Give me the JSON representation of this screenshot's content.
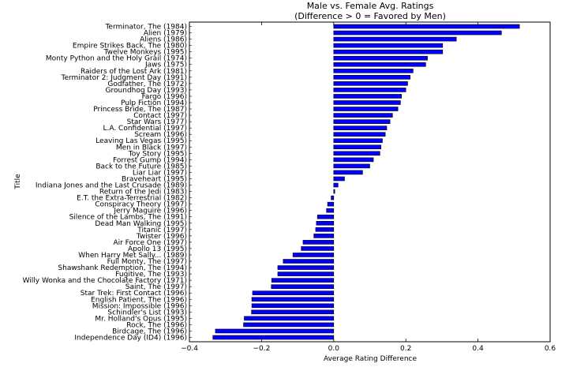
{
  "chart_data": {
    "type": "bar",
    "orientation": "horizontal",
    "title": "Male vs. Female Avg. Ratings",
    "subtitle": "(Difference > 0 = Favored by Men)",
    "xlabel": "Average Rating Difference",
    "ylabel": "Title",
    "xlim": [
      -0.4,
      0.6
    ],
    "xticks": [
      "−0.4",
      "−0.2",
      "0.0",
      "0.2",
      "0.4",
      "0.6"
    ],
    "grid": false,
    "bar_color": "#0000ff",
    "categories": [
      "Terminator, The (1984)",
      "Alien (1979)",
      "Aliens (1986)",
      "Empire Strikes Back, The (1980)",
      "Twelve Monkeys (1995)",
      "Monty Python and the Holy Grail (1974)",
      "Jaws (1975)",
      "Raiders of the Lost Ark (1981)",
      "Terminator 2: Judgment Day (1991)",
      "Godfather, The (1972)",
      "Groundhog Day (1993)",
      "Fargo (1996)",
      "Pulp Fiction (1994)",
      "Princess Bride, The (1987)",
      "Contact (1997)",
      "Star Wars (1977)",
      "L.A. Confidential (1997)",
      "Scream (1996)",
      "Leaving Las Vegas (1995)",
      "Men in Black (1997)",
      "Toy Story (1995)",
      "Forrest Gump (1994)",
      "Back to the Future (1985)",
      "Liar Liar (1997)",
      "Braveheart (1995)",
      "Indiana Jones and the Last Crusade (1989)",
      "Return of the Jedi (1983)",
      "E.T. the Extra-Terrestrial (1982)",
      "Conspiracy Theory (1997)",
      "Jerry Maguire (1996)",
      "Silence of the Lambs, The (1991)",
      "Dead Man Walking (1995)",
      "Titanic (1997)",
      "Twister (1996)",
      "Air Force One (1997)",
      "Apollo 13 (1995)",
      "When Harry Met Sally... (1989)",
      "Full Monty, The (1997)",
      "Shawshank Redemption, The (1994)",
      "Fugitive, The (1993)",
      "Willy Wonka and the Chocolate Factory (1971)",
      "Saint, The (1997)",
      "Star Trek: First Contact (1996)",
      "English Patient, The (1996)",
      "Mission: Impossible (1996)",
      "Schindler's List (1993)",
      "Mr. Holland's Opus (1995)",
      "Rock, The (1996)",
      "Birdcage, The (1996)",
      "Independence Day (ID4) (1996)"
    ],
    "values": [
      0.515,
      0.465,
      0.34,
      0.302,
      0.302,
      0.26,
      0.255,
      0.22,
      0.212,
      0.205,
      0.2,
      0.188,
      0.185,
      0.178,
      0.163,
      0.156,
      0.147,
      0.143,
      0.135,
      0.131,
      0.128,
      0.11,
      0.1,
      0.08,
      0.03,
      0.012,
      0.003,
      -0.007,
      -0.017,
      -0.02,
      -0.045,
      -0.048,
      -0.05,
      -0.055,
      -0.085,
      -0.09,
      -0.113,
      -0.14,
      -0.155,
      -0.155,
      -0.172,
      -0.173,
      -0.225,
      -0.227,
      -0.227,
      -0.228,
      -0.248,
      -0.25,
      -0.328,
      -0.335
    ]
  }
}
